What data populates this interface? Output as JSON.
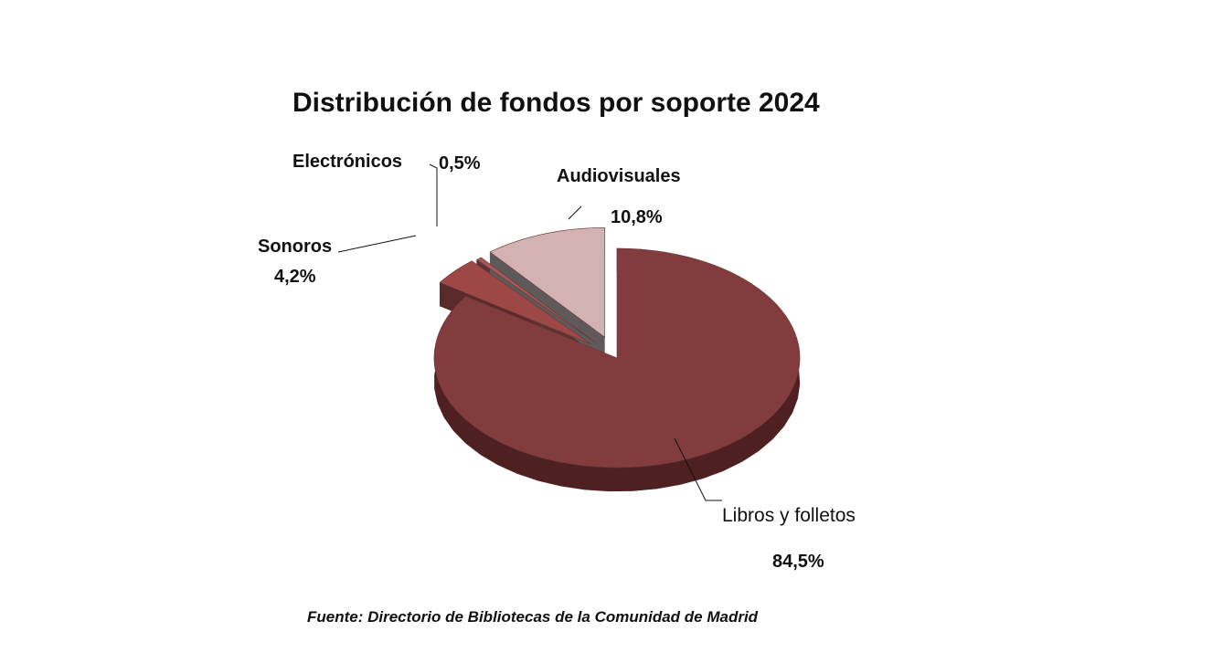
{
  "chart_data": {
    "type": "pie",
    "title": "Distribución de fondos por soporte 2024",
    "slices": [
      {
        "label": "Libros y folletos",
        "value": 84.5,
        "value_label": "84,5%",
        "color": "#833c3e",
        "side_color": "#4e2021"
      },
      {
        "label": "Sonoros",
        "value": 4.2,
        "value_label": "4,2%",
        "color": "#9e4747",
        "side_color": "#5a2a2a"
      },
      {
        "label": "Electrónicos",
        "value": 0.5,
        "value_label": "0,5%",
        "color": "#a35858",
        "side_color": "#5c3333"
      },
      {
        "label": "Audiovisuales",
        "value": 10.8,
        "value_label": "10,8%",
        "color": "#d2b2b3",
        "side_color": "#5e5a5a"
      }
    ],
    "source": "Fuente: Directorio de Bibliotecas de la Comunidad de Madrid"
  }
}
